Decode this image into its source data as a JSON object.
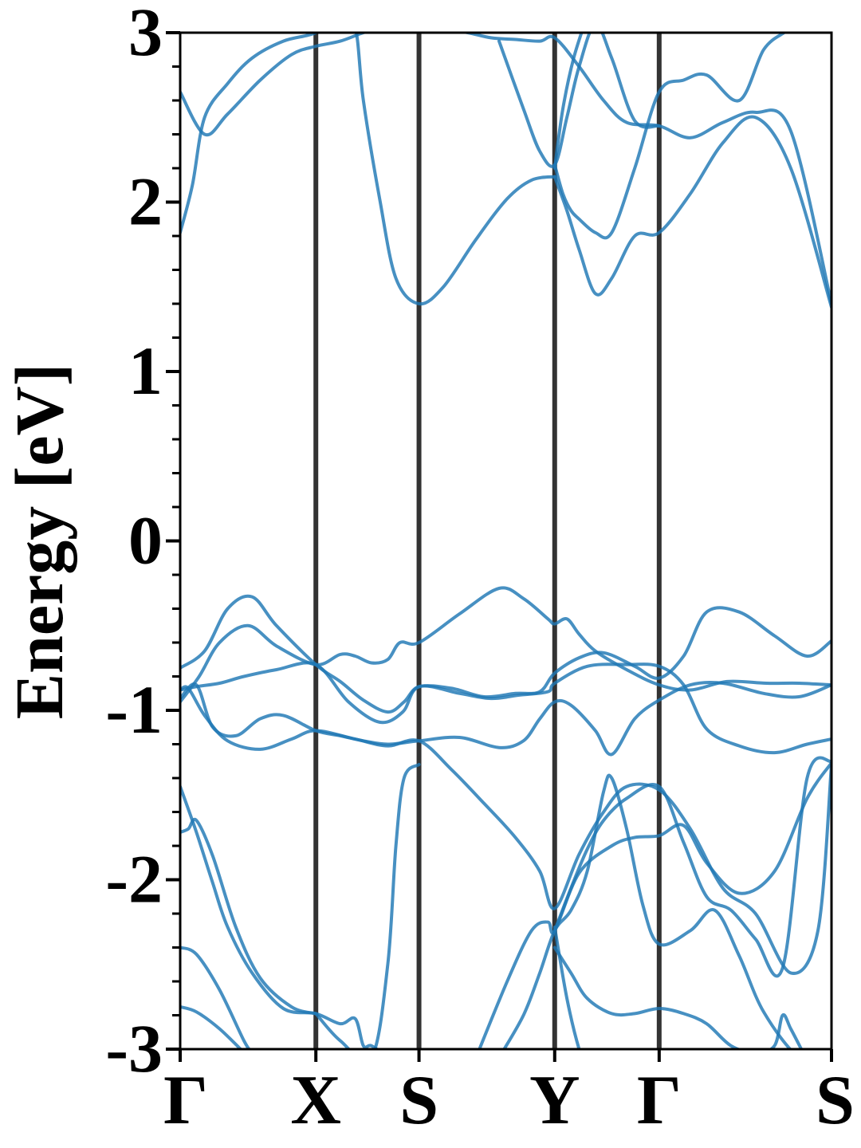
{
  "chart_data": {
    "type": "line",
    "title": "",
    "xlabel": "",
    "ylabel": "Energy [eV]",
    "ylim": [
      -3,
      3
    ],
    "yticks": [
      -3,
      -2,
      -1,
      0,
      1,
      2,
      3
    ],
    "yminor_step": 0.2,
    "grid": false,
    "legend": "none",
    "band_color": "#1f77b4",
    "kpath_line_color": "#333333",
    "kpoints": [
      {
        "label": "Γ",
        "pos": 0.0
      },
      {
        "label": "X",
        "pos": 1.0
      },
      {
        "label": "S",
        "pos": 1.76
      },
      {
        "label": "Y",
        "pos": 2.76
      },
      {
        "label": "Γ",
        "pos": 3.53
      },
      {
        "label": "S",
        "pos": 4.8
      }
    ],
    "series": [
      {
        "x": [
          0,
          0.14,
          0.29,
          0.5,
          0.71,
          1.0,
          1.18,
          1.29,
          1.41,
          1.53,
          1.62,
          1.76,
          2.06,
          2.35,
          2.53,
          2.71,
          2.76,
          2.85,
          2.94,
          3.06,
          3.29,
          3.53,
          3.76,
          4.03,
          4.32,
          4.56,
          4.8
        ],
        "y": [
          -0.95,
          -0.8,
          -0.6,
          -0.5,
          -0.62,
          -0.73,
          -0.67,
          -0.68,
          -0.72,
          -0.7,
          -0.6,
          -0.6,
          -0.43,
          -0.28,
          -0.34,
          -0.46,
          -0.49,
          -0.46,
          -0.55,
          -0.65,
          -0.76,
          -0.85,
          -0.88,
          -0.83,
          -0.84,
          -0.84,
          -0.85
        ]
      },
      {
        "x": [
          0,
          0.18,
          0.35,
          0.53,
          0.71,
          1.0,
          1.18,
          1.35,
          1.53,
          1.65,
          1.76,
          2.0,
          2.24,
          2.47,
          2.65,
          2.76,
          2.94,
          3.12,
          3.35,
          3.53,
          3.71,
          3.88,
          4.12,
          4.38,
          4.62,
          4.8
        ],
        "y": [
          -0.75,
          -0.65,
          -0.4,
          -0.33,
          -0.5,
          -0.73,
          -0.83,
          -0.94,
          -1.01,
          -0.95,
          -0.86,
          -0.87,
          -0.92,
          -0.9,
          -0.89,
          -0.78,
          -0.69,
          -0.66,
          -0.74,
          -0.81,
          -0.68,
          -0.42,
          -0.42,
          -0.56,
          -0.68,
          -0.59
        ]
      },
      {
        "x": [
          0,
          0.12,
          0.29,
          0.47,
          0.71,
          1.0,
          1.24,
          1.47,
          1.64,
          1.76,
          2.06,
          2.29,
          2.5,
          2.71,
          2.76,
          3.0,
          3.29,
          3.53,
          3.71,
          3.88,
          4.12,
          4.38,
          4.62,
          4.8
        ],
        "y": [
          -0.88,
          -0.86,
          -0.84,
          -0.8,
          -0.76,
          -0.73,
          -0.95,
          -1.07,
          -1.01,
          -0.86,
          -0.9,
          -0.93,
          -0.91,
          -0.89,
          -0.84,
          -0.74,
          -0.73,
          -0.74,
          -0.85,
          -1.11,
          -1.21,
          -1.25,
          -1.2,
          -1.17
        ]
      },
      {
        "x": [
          0,
          0.06,
          0.18,
          0.35,
          0.59,
          0.82,
          1.0,
          1.29,
          1.53,
          1.76,
          2.0,
          2.24,
          2.47,
          2.65,
          2.76,
          2.94,
          3.12,
          3.29,
          3.53,
          3.76,
          4.0,
          4.24,
          4.5,
          4.7,
          4.8
        ],
        "y": [
          -0.88,
          -0.87,
          -1.03,
          -1.18,
          -1.23,
          -1.17,
          -1.12,
          -1.17,
          -1.21,
          -1.18,
          -1.35,
          -1.55,
          -1.75,
          -1.95,
          -2.17,
          -1.85,
          -1.6,
          -1.45,
          -1.47,
          -1.7,
          -2.05,
          -2.2,
          -2.55,
          -2.3,
          -1.32
        ]
      },
      {
        "x": [
          0,
          0.12,
          0.24,
          0.41,
          0.59,
          0.76,
          1.0,
          1.18,
          1.35,
          1.53,
          1.76,
          2.06,
          2.35,
          2.53,
          2.65,
          2.76,
          2.88,
          3.06,
          3.18,
          3.35,
          3.53,
          3.76,
          4.0,
          4.3,
          4.56,
          4.8
        ],
        "y": [
          -0.93,
          -0.85,
          -1.1,
          -1.15,
          -1.05,
          -1.03,
          -1.12,
          -1.15,
          -1.18,
          -1.2,
          -1.18,
          -1.16,
          -1.22,
          -1.18,
          -1.05,
          -0.95,
          -0.97,
          -1.12,
          -1.26,
          -1.05,
          -0.94,
          -0.85,
          -0.84,
          -0.9,
          -0.92,
          -0.85
        ]
      },
      {
        "x": [
          0,
          0.18,
          0.35,
          0.59,
          0.82,
          1.0,
          1.18,
          1.35,
          1.47,
          1.59,
          1.76,
          1.94,
          2.12,
          2.29,
          2.47,
          2.65,
          2.76,
          2.94,
          3.12,
          3.29,
          3.53,
          3.76,
          4.0,
          4.24,
          4.5,
          4.8
        ],
        "y": [
          2.65,
          2.4,
          2.52,
          2.72,
          2.87,
          2.92,
          2.95,
          3.0,
          3.02,
          3.06,
          3.04,
          3.02,
          3.0,
          2.97,
          2.96,
          2.95,
          2.97,
          2.8,
          2.6,
          2.47,
          2.45,
          2.38,
          2.47,
          2.53,
          2.42,
          1.4
        ]
      },
      {
        "x": [
          0,
          0.09,
          0.18,
          0.35,
          0.53,
          0.76,
          1.0,
          1.18,
          1.29,
          1.35,
          1.47,
          1.59,
          1.76,
          1.94,
          2.18,
          2.41,
          2.59,
          2.76
        ],
        "y": [
          1.82,
          2.1,
          2.5,
          2.7,
          2.85,
          2.95,
          3.0,
          3.1,
          3.03,
          2.6,
          2.02,
          1.55,
          1.4,
          1.5,
          1.78,
          2.02,
          2.13,
          2.15
        ]
      },
      {
        "x": [
          2.76,
          2.85,
          2.94,
          3.06,
          3.18,
          3.35,
          3.53,
          3.76,
          4.0,
          4.24,
          4.5,
          4.8
        ],
        "y": [
          2.15,
          1.95,
          1.72,
          1.46,
          1.55,
          1.8,
          1.82,
          2.05,
          2.35,
          2.5,
          2.2,
          1.38
        ]
      },
      {
        "x": [
          2.76,
          2.82,
          2.88,
          2.94,
          3.06,
          3.18,
          3.35,
          3.53,
          3.71,
          3.88,
          4.12,
          4.3,
          4.45
        ],
        "y": [
          2.22,
          2.05,
          1.95,
          1.9,
          1.82,
          1.82,
          2.2,
          2.65,
          2.72,
          2.75,
          2.6,
          2.9,
          3.0
        ]
      },
      {
        "x": [
          2.35,
          2.53,
          2.65,
          2.76,
          2.85,
          2.94,
          3.06,
          3.18,
          3.35,
          3.53
        ],
        "y": [
          2.95,
          2.55,
          2.3,
          2.22,
          2.5,
          2.8,
          3.05,
          2.85,
          2.48,
          2.45
        ]
      },
      {
        "x": [
          2.76,
          2.82,
          2.9,
          3.0
        ],
        "y": [
          2.2,
          2.55,
          2.85,
          3.1
        ]
      },
      {
        "x": [
          0,
          0.12,
          0.24,
          0.35,
          0.53,
          0.76,
          1.0,
          1.18,
          1.29,
          1.35,
          1.41,
          1.53
        ],
        "y": [
          -1.45,
          -1.72,
          -2.02,
          -2.28,
          -2.55,
          -2.76,
          -2.79,
          -2.85,
          -2.82,
          -2.98,
          -2.98,
          -3.05
        ]
      },
      {
        "x": [
          0,
          0.06,
          0.12,
          0.24,
          0.41,
          0.59,
          0.82,
          1.0
        ],
        "y": [
          -1.72,
          -1.7,
          -1.65,
          -1.86,
          -2.28,
          -2.58,
          -2.75,
          -2.79
        ]
      },
      {
        "x": [
          0,
          0.12,
          0.29,
          0.47,
          0.53
        ],
        "y": [
          -2.4,
          -2.44,
          -2.65,
          -2.95,
          -3.02
        ]
      },
      {
        "x": [
          0,
          0.12,
          0.29,
          0.47
        ],
        "y": [
          -2.75,
          -2.78,
          -2.88,
          -3.02
        ]
      },
      {
        "x": [
          1.0,
          1.18,
          1.41,
          1.53,
          1.59,
          1.65,
          1.76
        ],
        "y": [
          -2.79,
          -2.95,
          -3.05,
          -2.5,
          -1.8,
          -1.4,
          -1.32
        ]
      },
      {
        "x": [
          2.18,
          2.41,
          2.59,
          2.71,
          2.76,
          2.94,
          3.18,
          3.35,
          3.53,
          3.71,
          3.88,
          4.12,
          4.38,
          4.62,
          4.8
        ],
        "y": [
          -3.05,
          -2.6,
          -2.3,
          -2.25,
          -2.3,
          -1.96,
          -1.8,
          -1.75,
          -1.74,
          -1.68,
          -1.9,
          -2.08,
          -1.95,
          -1.52,
          -1.31
        ]
      },
      {
        "x": [
          2.35,
          2.53,
          2.65,
          2.76,
          2.88,
          3.0,
          3.12,
          3.18,
          3.29,
          3.41,
          3.53,
          3.76,
          3.94,
          4.12,
          4.3,
          4.56,
          4.8
        ],
        "y": [
          -3.05,
          -2.8,
          -2.55,
          -2.3,
          -2.18,
          -1.95,
          -1.48,
          -1.4,
          -1.7,
          -2.15,
          -2.38,
          -2.3,
          -2.18,
          -2.45,
          -2.78,
          -3.05,
          -3.1
        ]
      },
      {
        "x": [
          2.76,
          2.88,
          3.0,
          3.12,
          3.29,
          3.53,
          3.71,
          3.88,
          4.06,
          4.24,
          4.44,
          4.62,
          4.8
        ],
        "y": [
          -2.3,
          -2.05,
          -1.82,
          -1.65,
          -1.52,
          -1.45,
          -1.78,
          -2.1,
          -2.18,
          -2.35,
          -2.52,
          -1.4,
          -1.3
        ]
      },
      {
        "x": [
          2.76,
          2.88,
          3.0,
          3.18,
          3.35,
          3.53,
          3.71,
          3.88,
          4.06,
          4.24,
          4.38,
          4.44,
          4.5,
          4.59
        ],
        "y": [
          -2.4,
          -2.55,
          -2.7,
          -2.79,
          -2.79,
          -2.76,
          -2.79,
          -2.85,
          -2.98,
          -3.02,
          -2.98,
          -2.8,
          -2.88,
          -3.02
        ]
      },
      {
        "x": [
          2.76,
          2.85,
          2.94,
          3.0
        ],
        "y": [
          -2.28,
          -2.7,
          -3.0,
          -3.1
        ]
      }
    ]
  }
}
